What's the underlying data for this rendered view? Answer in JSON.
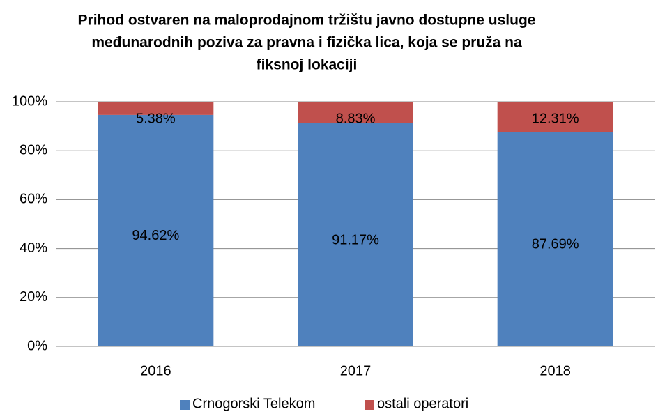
{
  "chart_data": {
    "type": "stacked-bar",
    "title": [
      "Prihod ostvaren na maloprodajnom tržištu javno dostupne usluge",
      "međunarodnih poziva za pravna i fizička lica, koja se pruža na",
      "fiksnoj lokaciji"
    ],
    "categories": [
      "2016",
      "2017",
      "2018"
    ],
    "series": [
      {
        "name": "Crnogorski Telekom",
        "color": "#4f81bd",
        "values": [
          94.62,
          91.17,
          87.69
        ],
        "value_labels": [
          "94.62%",
          "91.17%",
          "87.69%"
        ]
      },
      {
        "name": "ostali operatori",
        "color": "#c0504d",
        "values": [
          5.38,
          8.83,
          12.31
        ],
        "value_labels": [
          "5.38%",
          "8.83%",
          "12.31%"
        ]
      }
    ],
    "ylim": [
      0,
      100
    ],
    "yticks": [
      {
        "value": 0,
        "label": "0%"
      },
      {
        "value": 20,
        "label": "20%"
      },
      {
        "value": 40,
        "label": "40%"
      },
      {
        "value": 60,
        "label": "60%"
      },
      {
        "value": 80,
        "label": "80%"
      },
      {
        "value": 100,
        "label": "100%"
      }
    ],
    "grid": true,
    "legend": "bottom"
  }
}
